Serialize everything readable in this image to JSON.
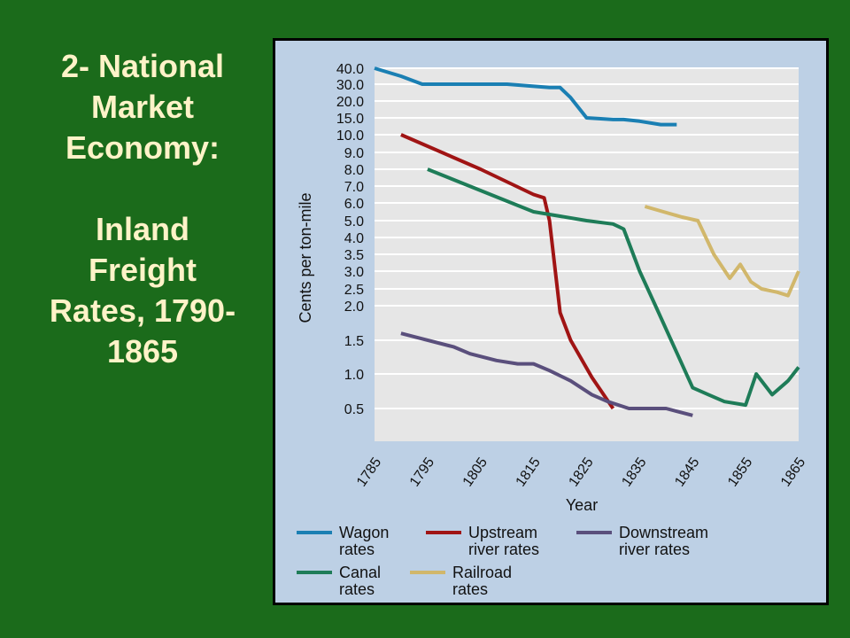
{
  "title": {
    "lines": [
      "2- National",
      "Market",
      "Economy:",
      "",
      "Inland",
      "Freight",
      "Rates, 1790-",
      "1865"
    ]
  },
  "colors": {
    "background": "#1b6b1b",
    "title_text": "#fff3c8",
    "chart_background": "#bdd0e5",
    "plot_background": "#e6e6e6",
    "gridline": "#ffffff"
  },
  "chart_data": {
    "type": "line",
    "xlabel": "Year",
    "ylabel": "Cents per ton-mile",
    "x_ticks": [
      "1785",
      "1795",
      "1805",
      "1815",
      "1825",
      "1835",
      "1845",
      "1855",
      "1865"
    ],
    "xlim": [
      1785,
      1865
    ],
    "y_ticks": [
      "40.0",
      "30.0",
      "20.0",
      "15.0",
      "10.0",
      "9.0",
      "8.0",
      "7.0",
      "6.0",
      "5.0",
      "4.0",
      "3.5",
      "3.0",
      "2.5",
      "2.0",
      "1.5",
      "1.0",
      "0.5"
    ],
    "y_scale": "categorical-spaced",
    "grid": true,
    "legend_position": "bottom",
    "series": [
      {
        "name": "Wagon rates",
        "color": "#1a7fb3",
        "x": [
          1785,
          1790,
          1794,
          1810,
          1818,
          1820,
          1822,
          1825,
          1830,
          1832,
          1835,
          1839,
          1842
        ],
        "y": [
          40,
          35,
          30,
          30,
          28,
          28,
          22,
          15,
          14.5,
          14.5,
          14,
          13,
          13
        ]
      },
      {
        "name": "Upstream river rates",
        "color": "#a01414",
        "x": [
          1790,
          1805,
          1815,
          1817,
          1818,
          1820,
          1822,
          1826,
          1830
        ],
        "y": [
          10,
          8,
          6.5,
          6.3,
          5,
          1.9,
          1.5,
          0.95,
          0.5
        ]
      },
      {
        "name": "Downstream river rates",
        "color": "#5a4f7c",
        "x": [
          1790,
          1800,
          1803,
          1808,
          1812,
          1815,
          1818,
          1822,
          1826,
          1829,
          1833,
          1836,
          1840,
          1845
        ],
        "y": [
          1.6,
          1.4,
          1.3,
          1.2,
          1.15,
          1.15,
          1.05,
          0.9,
          0.7,
          0.6,
          0.5,
          0.5,
          0.5,
          0.4
        ]
      },
      {
        "name": "Canal rates",
        "color": "#1e7c58",
        "x": [
          1795,
          1815,
          1819,
          1825,
          1830,
          1832,
          1835,
          1838,
          1845,
          1848,
          1851,
          1855,
          1857,
          1860,
          1863,
          1865
        ],
        "y": [
          8,
          5.5,
          5.3,
          5,
          4.8,
          4.5,
          3,
          2,
          0.8,
          0.7,
          0.6,
          0.55,
          1,
          0.7,
          0.9,
          1.1
        ]
      },
      {
        "name": "Railroad rates",
        "color": "#d1b76b",
        "x": [
          1836,
          1843,
          1846,
          1849,
          1852,
          1854,
          1856,
          1858,
          1861,
          1863,
          1865
        ],
        "y": [
          5.8,
          5.2,
          5,
          3.5,
          2.8,
          3.2,
          2.7,
          2.5,
          2.4,
          2.3,
          3
        ]
      }
    ],
    "legend": [
      {
        "lines": [
          "Wagon",
          "rates"
        ],
        "series": 0
      },
      {
        "lines": [
          "Upstream",
          "river rates"
        ],
        "series": 1
      },
      {
        "lines": [
          "Downstream",
          "river rates"
        ],
        "series": 2
      },
      {
        "lines": [
          "Canal",
          "rates"
        ],
        "series": 3
      },
      {
        "lines": [
          "Railroad",
          "rates"
        ],
        "series": 4
      }
    ]
  }
}
